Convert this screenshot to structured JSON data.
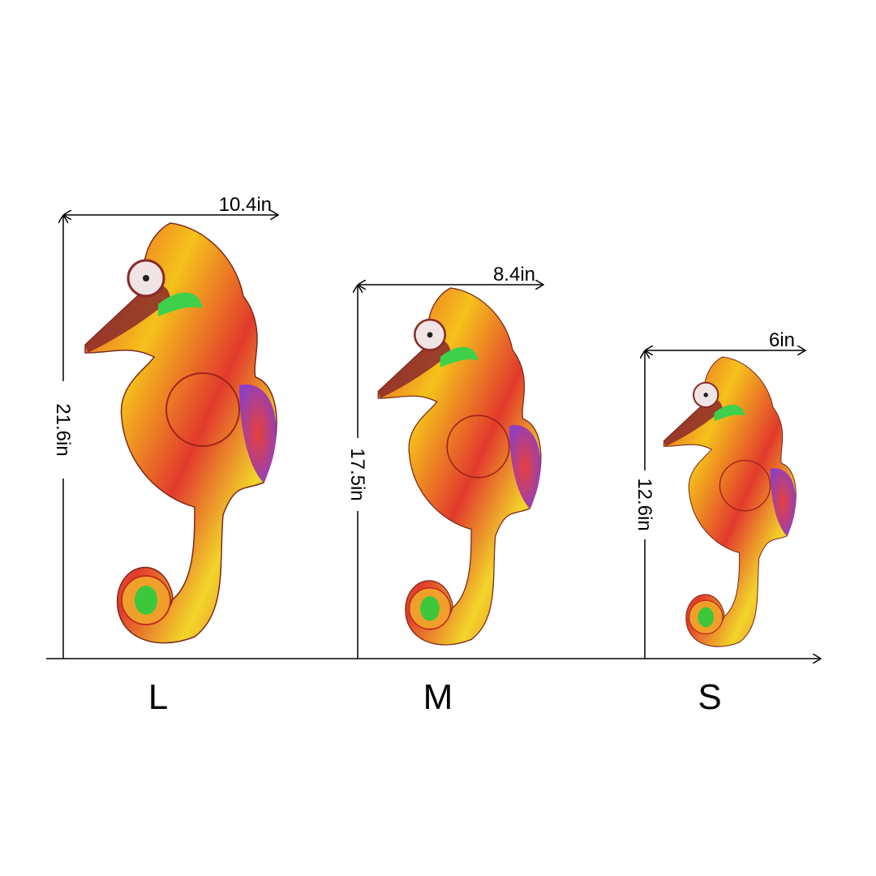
{
  "sizes": [
    {
      "label": "L",
      "width": "10.4in",
      "height": "21.6in"
    },
    {
      "label": "M",
      "width": "8.4in",
      "height": "17.5in"
    },
    {
      "label": "S",
      "width": "6in",
      "height": "12.6in"
    }
  ],
  "colors": {
    "line": "#000000",
    "background": "#ffffff"
  }
}
